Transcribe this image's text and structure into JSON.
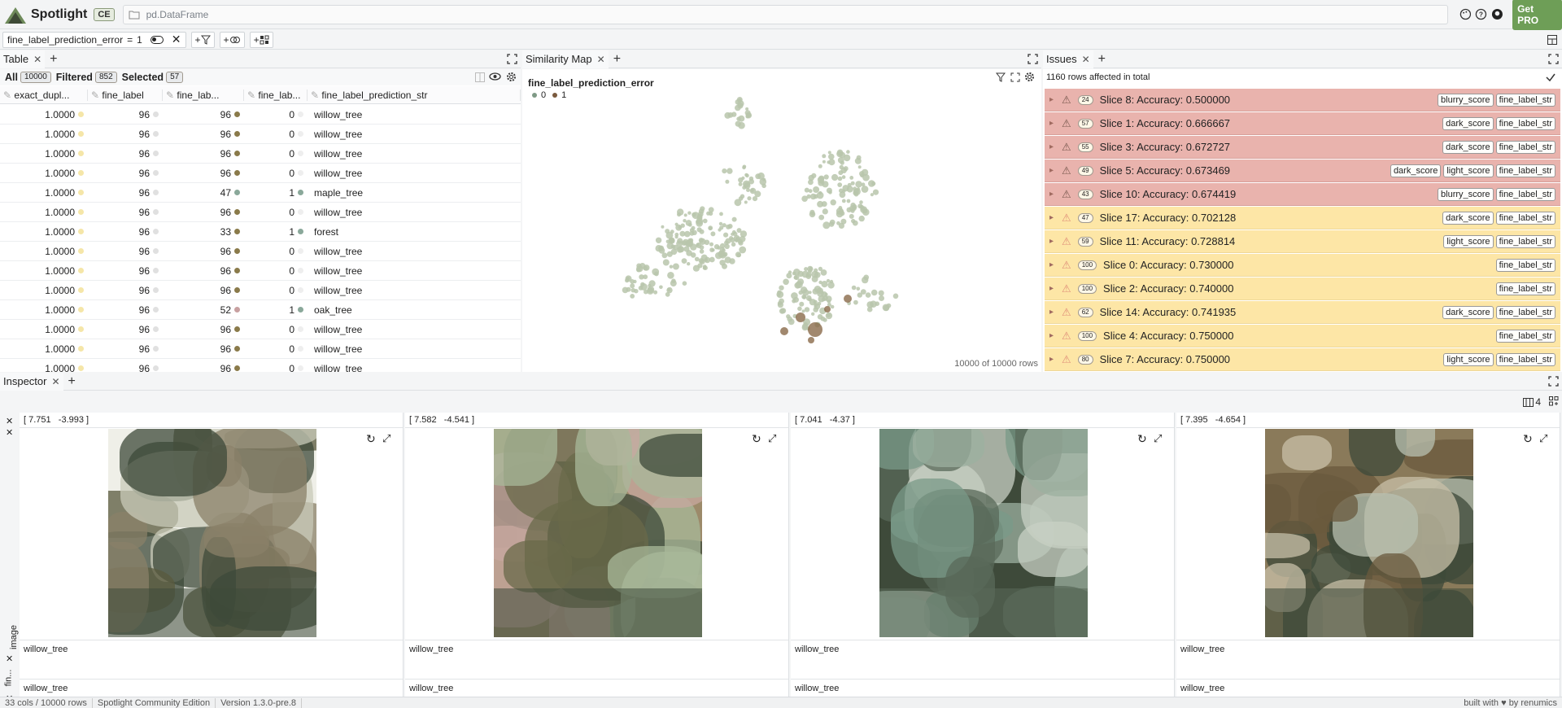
{
  "app": {
    "name": "Spotlight",
    "edition_badge": "CE",
    "path": "pd.DataFrame",
    "get_pro": "Get PRO"
  },
  "filter": {
    "label": "fine_label_prediction_error",
    "op": "=",
    "value": "1"
  },
  "table": {
    "tab": "Table",
    "all_label": "All",
    "all_count": "10000",
    "filtered_label": "Filtered",
    "filtered_count": "852",
    "selected_label": "Selected",
    "selected_count": "57",
    "columns": [
      "exact_dupl...",
      "fine_label",
      "fine_lab...",
      "fine_lab...",
      "fine_label_prediction_str"
    ],
    "rows": [
      [
        "1.0000",
        "96",
        "96",
        "0",
        "willow_tree"
      ],
      [
        "1.0000",
        "96",
        "96",
        "0",
        "willow_tree"
      ],
      [
        "1.0000",
        "96",
        "96",
        "0",
        "willow_tree"
      ],
      [
        "1.0000",
        "96",
        "96",
        "0",
        "willow_tree"
      ],
      [
        "1.0000",
        "96",
        "47",
        "1",
        "maple_tree"
      ],
      [
        "1.0000",
        "96",
        "96",
        "0",
        "willow_tree"
      ],
      [
        "1.0000",
        "96",
        "33",
        "1",
        "forest"
      ],
      [
        "1.0000",
        "96",
        "96",
        "0",
        "willow_tree"
      ],
      [
        "1.0000",
        "96",
        "96",
        "0",
        "willow_tree"
      ],
      [
        "1.0000",
        "96",
        "96",
        "0",
        "willow_tree"
      ],
      [
        "1.0000",
        "96",
        "52",
        "1",
        "oak_tree"
      ],
      [
        "1.0000",
        "96",
        "96",
        "0",
        "willow_tree"
      ],
      [
        "1.0000",
        "96",
        "96",
        "0",
        "willow_tree"
      ],
      [
        "1.0000",
        "96",
        "96",
        "0",
        "willow_tree"
      ]
    ],
    "colors": {
      "yellow_dot": "#f5e6a8",
      "olive_dot": "#8a7a4a",
      "green_dot": "#8aa89a",
      "pink_dot": "#c8a0a0",
      "grey_dot": "#e0e0e0"
    }
  },
  "simmap": {
    "tab": "Similarity Map",
    "legend_title": "fine_label_prediction_error",
    "legend": [
      "0",
      "1"
    ],
    "footer": "10000 of 10000 rows",
    "colors": {
      "zero": "#b9c6ab",
      "one": "#8a6a4a"
    }
  },
  "issues": {
    "tab": "Issues",
    "summary": "1160 rows affected in total",
    "rows": [
      {
        "count": "24",
        "label": "Slice 8: Accuracy: 0.500000",
        "tags": [
          "blurry_score",
          "fine_label_str"
        ],
        "level": "red"
      },
      {
        "count": "57",
        "label": "Slice 1: Accuracy: 0.666667",
        "tags": [
          "dark_score",
          "fine_label_str"
        ],
        "level": "red"
      },
      {
        "count": "55",
        "label": "Slice 3: Accuracy: 0.672727",
        "tags": [
          "dark_score",
          "fine_label_str"
        ],
        "level": "red"
      },
      {
        "count": "49",
        "label": "Slice 5: Accuracy: 0.673469",
        "tags": [
          "dark_score",
          "light_score",
          "fine_label_str"
        ],
        "level": "red"
      },
      {
        "count": "43",
        "label": "Slice 10: Accuracy: 0.674419",
        "tags": [
          "blurry_score",
          "fine_label_str"
        ],
        "level": "red"
      },
      {
        "count": "47",
        "label": "Slice 17: Accuracy: 0.702128",
        "tags": [
          "dark_score",
          "fine_label_str"
        ],
        "level": "yellow"
      },
      {
        "count": "59",
        "label": "Slice 11: Accuracy: 0.728814",
        "tags": [
          "light_score",
          "fine_label_str"
        ],
        "level": "yellow"
      },
      {
        "count": "100",
        "label": "Slice 0: Accuracy: 0.730000",
        "tags": [
          "fine_label_str"
        ],
        "level": "yellow"
      },
      {
        "count": "100",
        "label": "Slice 2: Accuracy: 0.740000",
        "tags": [
          "fine_label_str"
        ],
        "level": "yellow"
      },
      {
        "count": "62",
        "label": "Slice 14: Accuracy: 0.741935",
        "tags": [
          "dark_score",
          "fine_label_str"
        ],
        "level": "yellow"
      },
      {
        "count": "100",
        "label": "Slice 4: Accuracy: 0.750000",
        "tags": [
          "fine_label_str"
        ],
        "level": "yellow"
      },
      {
        "count": "80",
        "label": "Slice 7: Accuracy: 0.750000",
        "tags": [
          "light_score",
          "fine_label_str"
        ],
        "level": "yellow"
      }
    ]
  },
  "inspector": {
    "tab": "Inspector",
    "columns_count": "4",
    "row_labels": [
      "image",
      "fin..."
    ],
    "cards": [
      {
        "coords": "[ 7.751   -3.993 ]",
        "label1": "willow_tree",
        "label2": "willow_tree"
      },
      {
        "coords": "[ 7.582   -4.541 ]",
        "label1": "willow_tree",
        "label2": "willow_tree"
      },
      {
        "coords": "[ 7.041   -4.37 ]",
        "label1": "willow_tree",
        "label2": "willow_tree"
      },
      {
        "coords": "[ 7.395   -4.654 ]",
        "label1": "willow_tree",
        "label2": "willow_tree"
      }
    ]
  },
  "status": {
    "cols_rows": "33 cols / 10000 rows",
    "edition": "Spotlight Community Edition",
    "version": "Version 1.3.0-pre.8",
    "built": "built with ♥ by renumics"
  }
}
